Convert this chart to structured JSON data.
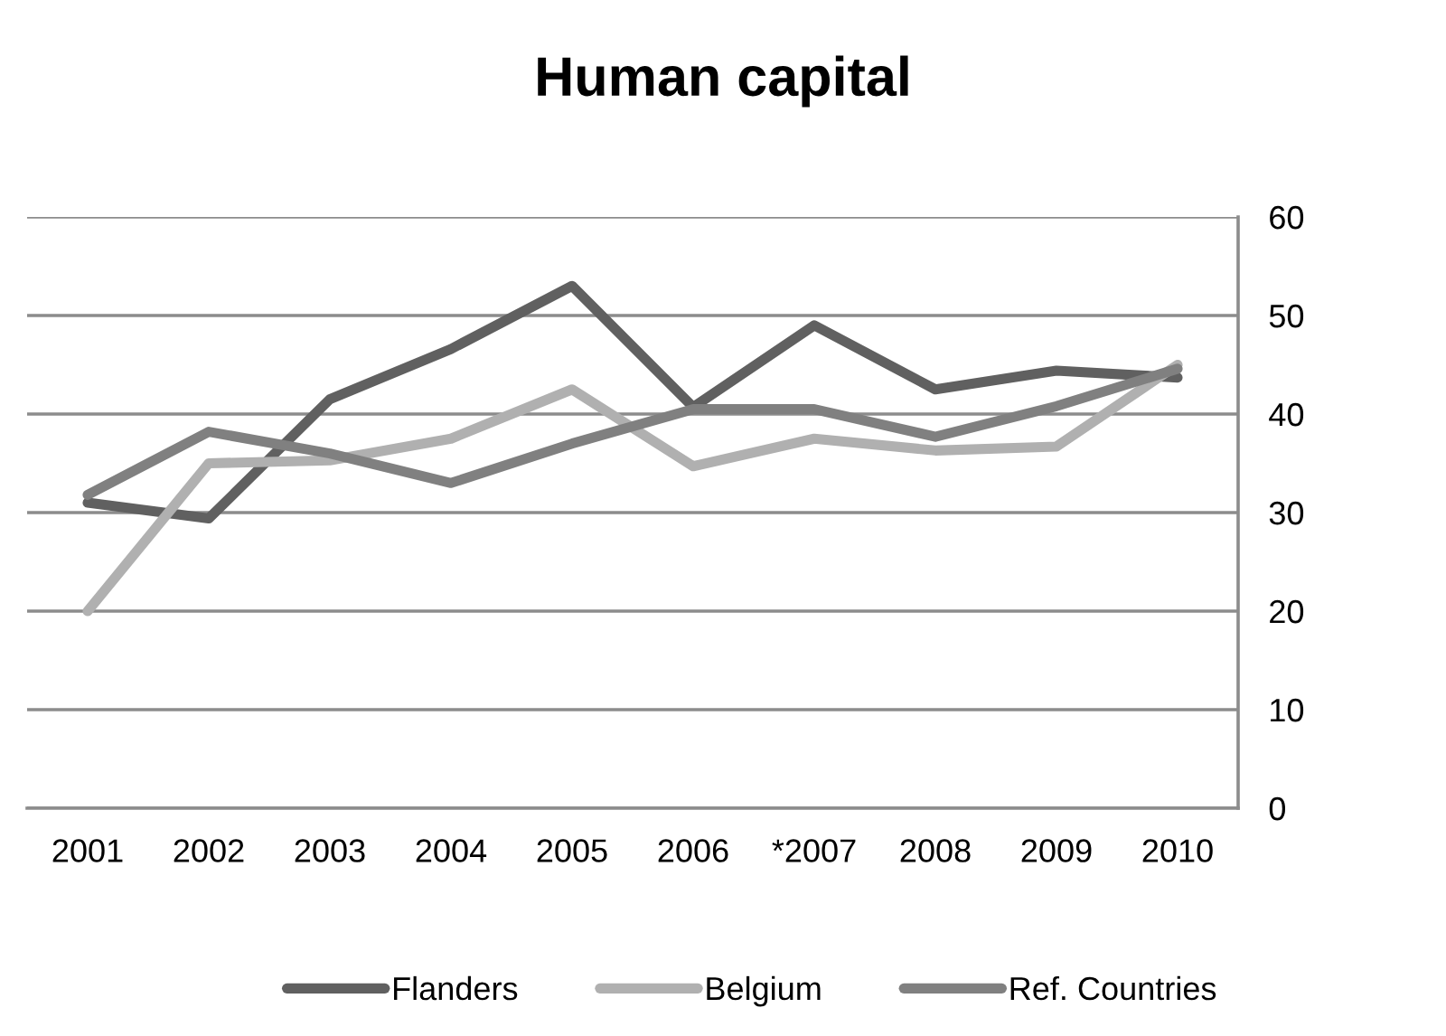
{
  "chart_data": {
    "type": "line",
    "title": "Human capital",
    "categories": [
      "2001",
      "2002",
      "2003",
      "2004",
      "2005",
      "2006",
      "*2007",
      "2008",
      "2009",
      "2010"
    ],
    "series": [
      {
        "name": "Flanders",
        "color": "#606060",
        "values": [
          31,
          29.4,
          41.5,
          46.6,
          53,
          40.7,
          49,
          42.5,
          44.4,
          43.7
        ]
      },
      {
        "name": "Belgium",
        "color": "#b0b0b0",
        "values": [
          20,
          35,
          35.3,
          37.5,
          42.5,
          34.7,
          37.5,
          36.3,
          36.7,
          45
        ]
      },
      {
        "name": "Ref. Countries",
        "color": "#808080",
        "values": [
          31.8,
          38.2,
          36,
          33,
          37,
          40.5,
          40.5,
          37.7,
          40.8,
          44.6
        ]
      }
    ],
    "ylim": [
      0,
      60
    ],
    "yticks": [
      0,
      10,
      20,
      30,
      40,
      50,
      60
    ],
    "grid": "y",
    "legend": "bottom",
    "marker": "none",
    "line_style": "solid"
  }
}
